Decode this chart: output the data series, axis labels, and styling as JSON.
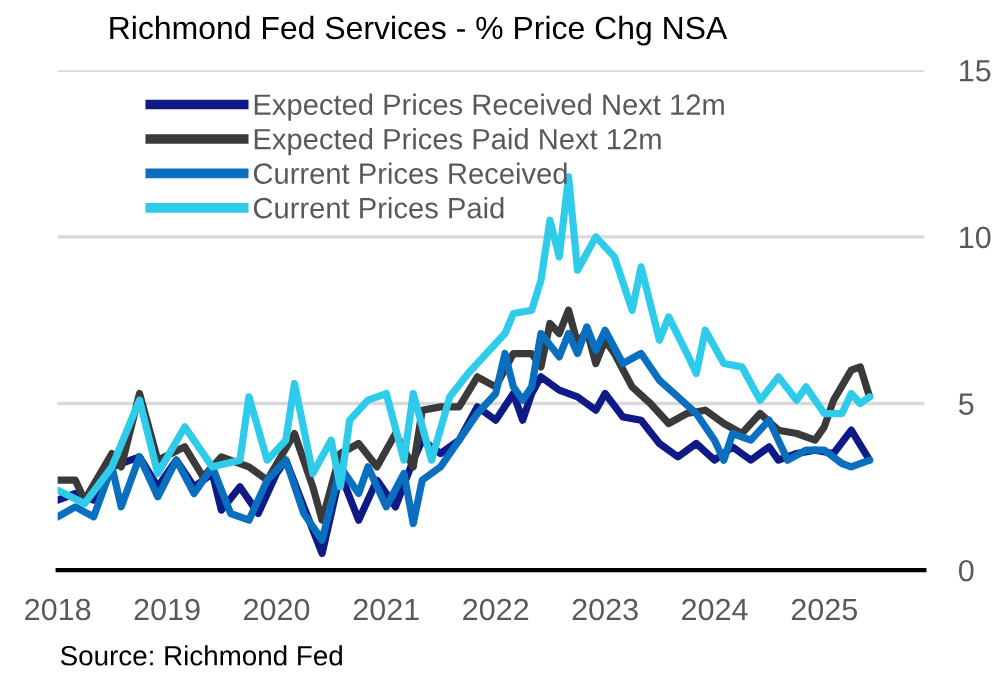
{
  "chart_data": {
    "type": "line",
    "title": "Richmond Fed Services - % Price Chg NSA",
    "xlim": [
      "2018-01",
      "2025-12"
    ],
    "xticks": [
      "2018",
      "2019",
      "2020",
      "2021",
      "2022",
      "2023",
      "2024",
      "2025"
    ],
    "ylim": [
      0,
      15
    ],
    "yticks": [
      0,
      5,
      10,
      15
    ],
    "grid": "y",
    "legend": "top left",
    "annotations": [
      "Source: Richmond Fed"
    ],
    "series": [
      {
        "name": "Expected Prices Received Next 12m",
        "color": "#101a86",
        "x": [
          "2018-01",
          "2018-03",
          "2018-05",
          "2018-07",
          "2018-10",
          "2018-12",
          "2019-02",
          "2019-04",
          "2019-06",
          "2019-07",
          "2019-09",
          "2019-11",
          "2020-01",
          "2020-02",
          "2020-04",
          "2020-06",
          "2020-08",
          "2020-10",
          "2020-12",
          "2021-02",
          "2021-04",
          "2021-05",
          "2021-07",
          "2021-09",
          "2021-11",
          "2022-01",
          "2022-03",
          "2022-04",
          "2022-05",
          "2022-06",
          "2022-08",
          "2022-10",
          "2022-12",
          "2023-01",
          "2023-03",
          "2023-05",
          "2023-07",
          "2023-09",
          "2023-11",
          "2024-01",
          "2024-03",
          "2024-05",
          "2024-07",
          "2024-08",
          "2024-10",
          "2024-12",
          "2025-02",
          "2025-04",
          "2025-06"
        ],
        "values": [
          2.1,
          2.3,
          2.1,
          3.1,
          3.4,
          2.5,
          3.3,
          2.5,
          2.9,
          1.8,
          2.5,
          1.7,
          2.9,
          3.3,
          1.9,
          0.5,
          2.9,
          1.5,
          2.7,
          1.9,
          3.3,
          3.9,
          3.5,
          3.9,
          4.9,
          4.5,
          5.3,
          4.5,
          5.3,
          5.8,
          5.4,
          5.2,
          4.8,
          5.3,
          4.6,
          4.5,
          3.8,
          3.4,
          3.8,
          3.3,
          3.7,
          3.3,
          3.7,
          3.3,
          3.5,
          3.6,
          3.5,
          4.2,
          3.3
        ]
      },
      {
        "name": "Expected Prices Paid Next 12m",
        "color": "#3a3a3a",
        "x": [
          "2018-01",
          "2018-03",
          "2018-04",
          "2018-07",
          "2018-08",
          "2018-10",
          "2018-12",
          "2019-03",
          "2019-05",
          "2019-07",
          "2019-10",
          "2019-12",
          "2020-03",
          "2020-05",
          "2020-06",
          "2020-08",
          "2020-10",
          "2020-12",
          "2021-02",
          "2021-04",
          "2021-05",
          "2021-07",
          "2021-09",
          "2021-11",
          "2022-01",
          "2022-03",
          "2022-05",
          "2022-06",
          "2022-07",
          "2022-08",
          "2022-09",
          "2022-10",
          "2022-11",
          "2022-12",
          "2023-01",
          "2023-02",
          "2023-04",
          "2023-06",
          "2023-08",
          "2023-10",
          "2023-12",
          "2024-02",
          "2024-04",
          "2024-06",
          "2024-08",
          "2024-10",
          "2024-12",
          "2025-01",
          "2025-02",
          "2025-04",
          "2025-05",
          "2025-06"
        ],
        "values": [
          2.7,
          2.7,
          2.1,
          3.5,
          3.1,
          5.3,
          3.3,
          3.7,
          2.8,
          3.4,
          3.1,
          2.7,
          4.1,
          2.5,
          1.5,
          3.5,
          3.8,
          3.1,
          4.1,
          3.1,
          4.8,
          4.9,
          4.9,
          5.8,
          5.5,
          6.5,
          6.5,
          6.1,
          7.4,
          7.1,
          7.8,
          6.8,
          7.2,
          6.2,
          6.9,
          6.5,
          5.5,
          5.0,
          4.4,
          4.7,
          4.8,
          4.4,
          4.1,
          4.7,
          4.2,
          4.1,
          3.9,
          4.3,
          5.1,
          6.0,
          6.1,
          5.2
        ]
      },
      {
        "name": "Current Prices Received",
        "color": "#0a6fbf",
        "x": [
          "2018-01",
          "2018-03",
          "2018-05",
          "2018-07",
          "2018-08",
          "2018-10",
          "2018-12",
          "2019-02",
          "2019-04",
          "2019-06",
          "2019-08",
          "2019-10",
          "2019-12",
          "2020-02",
          "2020-04",
          "2020-06",
          "2020-08",
          "2020-10",
          "2020-11",
          "2021-01",
          "2021-03",
          "2021-04",
          "2021-05",
          "2021-07",
          "2021-09",
          "2021-11",
          "2022-01",
          "2022-02",
          "2022-03",
          "2022-04",
          "2022-05",
          "2022-06",
          "2022-08",
          "2022-09",
          "2022-10",
          "2022-11",
          "2022-12",
          "2023-01",
          "2023-03",
          "2023-05",
          "2023-07",
          "2023-09",
          "2023-11",
          "2024-01",
          "2024-02",
          "2024-03",
          "2024-05",
          "2024-07",
          "2024-09",
          "2024-11",
          "2025-01",
          "2025-03",
          "2025-04",
          "2025-06"
        ],
        "values": [
          1.6,
          1.9,
          1.6,
          3.1,
          1.9,
          3.4,
          2.2,
          3.3,
          2.3,
          3.1,
          1.7,
          1.5,
          2.7,
          3.3,
          1.7,
          0.9,
          3.1,
          2.3,
          3.1,
          1.9,
          2.9,
          1.4,
          2.7,
          3.1,
          3.9,
          4.7,
          5.3,
          6.5,
          5.5,
          5.1,
          5.5,
          7.1,
          6.4,
          7.1,
          6.5,
          7.3,
          6.6,
          7.2,
          6.2,
          6.5,
          5.7,
          5.2,
          4.7,
          3.9,
          3.3,
          4.1,
          3.9,
          4.5,
          3.3,
          3.6,
          3.6,
          3.2,
          3.1,
          3.3
        ]
      },
      {
        "name": "Current Prices Paid",
        "color": "#2ecbea",
        "x": [
          "2018-01",
          "2018-04",
          "2018-07",
          "2018-10",
          "2018-12",
          "2019-03",
          "2019-06",
          "2019-09",
          "2019-10",
          "2019-12",
          "2020-02",
          "2020-03",
          "2020-05",
          "2020-07",
          "2020-08",
          "2020-09",
          "2020-11",
          "2021-01",
          "2021-03",
          "2021-04",
          "2021-06",
          "2021-08",
          "2021-10",
          "2021-12",
          "2022-02",
          "2022-03",
          "2022-05",
          "2022-06",
          "2022-07",
          "2022-08",
          "2022-09",
          "2022-10",
          "2022-12",
          "2023-02",
          "2023-04",
          "2023-05",
          "2023-07",
          "2023-08",
          "2023-10",
          "2023-11",
          "2023-12",
          "2024-02",
          "2024-04",
          "2024-06",
          "2024-08",
          "2024-10",
          "2024-11",
          "2025-01",
          "2025-03",
          "2025-04",
          "2025-05",
          "2025-06"
        ],
        "values": [
          2.4,
          2.0,
          3.1,
          5.1,
          2.9,
          4.3,
          3.1,
          3.3,
          5.2,
          3.3,
          3.9,
          5.6,
          2.9,
          3.9,
          2.5,
          4.5,
          5.1,
          5.3,
          3.3,
          5.3,
          3.3,
          5.2,
          5.9,
          6.5,
          7.1,
          7.7,
          7.8,
          8.7,
          10.5,
          9.4,
          11.8,
          9.0,
          10.0,
          9.4,
          7.8,
          9.1,
          6.9,
          7.6,
          6.5,
          5.9,
          7.2,
          6.2,
          6.1,
          5.1,
          5.8,
          5.1,
          5.5,
          4.7,
          4.7,
          5.3,
          5.0,
          5.2
        ]
      }
    ]
  }
}
